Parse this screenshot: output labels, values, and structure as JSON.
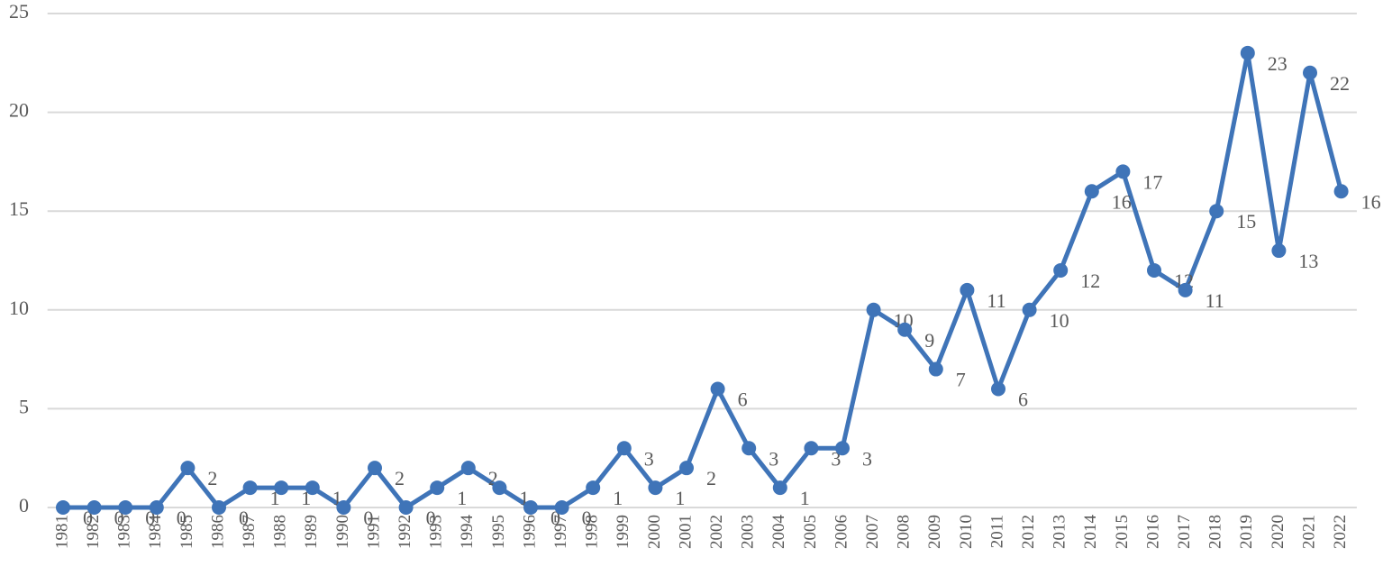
{
  "chart_data": {
    "type": "line",
    "categories": [
      "1981",
      "1982",
      "1983",
      "1984",
      "1985",
      "1986",
      "1987",
      "1988",
      "1989",
      "1990",
      "1991",
      "1992",
      "1993",
      "1994",
      "1995",
      "1996",
      "1997",
      "1998",
      "1999",
      "2000",
      "2001",
      "2002",
      "2003",
      "2004",
      "2005",
      "2006",
      "2007",
      "2008",
      "2009",
      "2010",
      "2011",
      "2012",
      "2013",
      "2014",
      "2015",
      "2016",
      "2017",
      "2018",
      "2019",
      "2020",
      "2021",
      "2022"
    ],
    "values": [
      0,
      0,
      0,
      0,
      2,
      0,
      1,
      1,
      1,
      0,
      2,
      0,
      1,
      2,
      1,
      0,
      0,
      1,
      3,
      1,
      2,
      6,
      3,
      1,
      3,
      3,
      10,
      9,
      7,
      11,
      6,
      10,
      12,
      16,
      17,
      12,
      11,
      15,
      23,
      13,
      22,
      16
    ],
    "color": "#3f74b8",
    "ylim": [
      0,
      25
    ],
    "yticks": [
      0,
      5,
      10,
      15,
      20,
      25
    ],
    "grid": true
  }
}
